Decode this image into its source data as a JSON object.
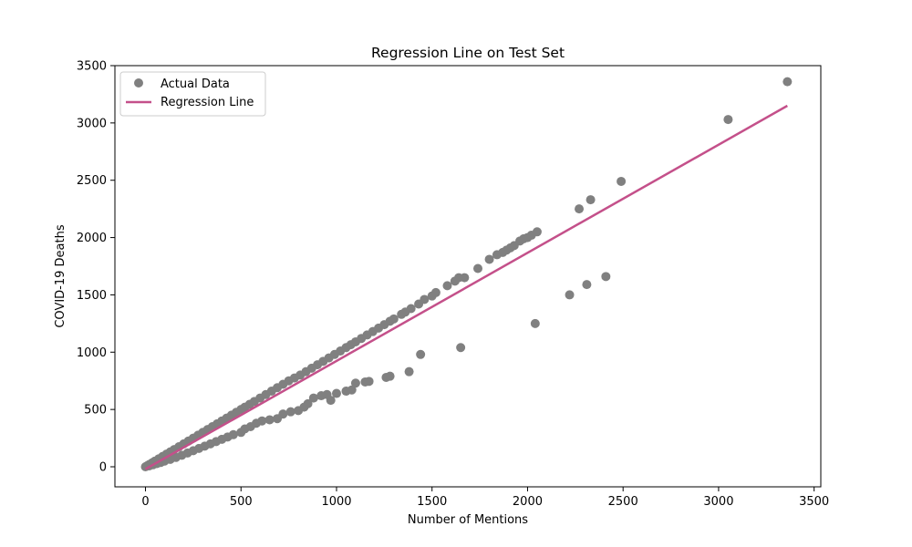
{
  "chart_data": {
    "type": "scatter",
    "title": "Regression Line on Test Set",
    "xlabel": "Number of Mentions",
    "ylabel": "COVID-19 Deaths",
    "xlim": [
      -160,
      3535
    ],
    "ylim": [
      -175,
      3500
    ],
    "xticks": [
      0,
      500,
      1000,
      1500,
      2000,
      2500,
      3000,
      3500
    ],
    "yticks": [
      0,
      500,
      1000,
      1500,
      2000,
      2500,
      3000,
      3500
    ],
    "grid": false,
    "legend_position": "top-left",
    "colors": {
      "points": "#808080",
      "line": "#c4508a"
    },
    "series": [
      {
        "name": "Actual Data",
        "kind": "scatter",
        "upper_band": [
          [
            0,
            0
          ],
          [
            10,
            10
          ],
          [
            20,
            20
          ],
          [
            35,
            35
          ],
          [
            50,
            50
          ],
          [
            70,
            70
          ],
          [
            90,
            90
          ],
          [
            110,
            110
          ],
          [
            130,
            130
          ],
          [
            150,
            150
          ],
          [
            175,
            175
          ],
          [
            200,
            200
          ],
          [
            225,
            225
          ],
          [
            250,
            250
          ],
          [
            275,
            275
          ],
          [
            300,
            300
          ],
          [
            325,
            325
          ],
          [
            350,
            350
          ],
          [
            375,
            375
          ],
          [
            400,
            400
          ],
          [
            425,
            425
          ],
          [
            450,
            450
          ],
          [
            475,
            475
          ],
          [
            500,
            500
          ],
          [
            520,
            520
          ],
          [
            545,
            545
          ],
          [
            570,
            570
          ],
          [
            600,
            600
          ],
          [
            630,
            630
          ],
          [
            660,
            660
          ],
          [
            690,
            690
          ],
          [
            720,
            720
          ],
          [
            750,
            750
          ],
          [
            780,
            775
          ],
          [
            810,
            800
          ],
          [
            840,
            830
          ],
          [
            870,
            860
          ],
          [
            900,
            890
          ],
          [
            930,
            920
          ],
          [
            960,
            950
          ],
          [
            990,
            980
          ],
          [
            1020,
            1010
          ],
          [
            1050,
            1040
          ],
          [
            1075,
            1065
          ],
          [
            1100,
            1090
          ],
          [
            1130,
            1120
          ],
          [
            1160,
            1150
          ],
          [
            1190,
            1180
          ],
          [
            1220,
            1210
          ],
          [
            1250,
            1240
          ],
          [
            1280,
            1270
          ],
          [
            1300,
            1290
          ],
          [
            1340,
            1330
          ],
          [
            1360,
            1350
          ],
          [
            1390,
            1380
          ],
          [
            1430,
            1420
          ],
          [
            1460,
            1460
          ],
          [
            1500,
            1490
          ],
          [
            1520,
            1520
          ],
          [
            1580,
            1580
          ],
          [
            1620,
            1620
          ],
          [
            1640,
            1650
          ],
          [
            1670,
            1650
          ],
          [
            1740,
            1730
          ],
          [
            1800,
            1810
          ],
          [
            1840,
            1850
          ],
          [
            1870,
            1870
          ],
          [
            1890,
            1890
          ],
          [
            1910,
            1910
          ],
          [
            1930,
            1930
          ],
          [
            1960,
            1970
          ],
          [
            1980,
            1990
          ],
          [
            2000,
            2000
          ],
          [
            2020,
            2020
          ],
          [
            2050,
            2050
          ],
          [
            2270,
            2250
          ],
          [
            2330,
            2330
          ],
          [
            2490,
            2490
          ],
          [
            3050,
            3030
          ],
          [
            3360,
            3360
          ]
        ],
        "lower_band": [
          [
            20,
            8
          ],
          [
            40,
            18
          ],
          [
            60,
            28
          ],
          [
            80,
            38
          ],
          [
            100,
            50
          ],
          [
            130,
            65
          ],
          [
            160,
            82
          ],
          [
            190,
            100
          ],
          [
            220,
            120
          ],
          [
            250,
            140
          ],
          [
            280,
            160
          ],
          [
            310,
            180
          ],
          [
            340,
            200
          ],
          [
            370,
            220
          ],
          [
            400,
            240
          ],
          [
            430,
            260
          ],
          [
            460,
            280
          ],
          [
            500,
            300
          ],
          [
            520,
            330
          ],
          [
            550,
            350
          ],
          [
            580,
            380
          ],
          [
            610,
            400
          ],
          [
            650,
            410
          ],
          [
            690,
            420
          ],
          [
            720,
            460
          ],
          [
            760,
            480
          ],
          [
            800,
            490
          ],
          [
            830,
            520
          ],
          [
            850,
            550
          ],
          [
            880,
            600
          ],
          [
            920,
            620
          ],
          [
            950,
            630
          ],
          [
            970,
            580
          ],
          [
            1000,
            640
          ],
          [
            1050,
            660
          ],
          [
            1080,
            670
          ],
          [
            1100,
            730
          ],
          [
            1150,
            740
          ],
          [
            1170,
            745
          ],
          [
            1260,
            780
          ],
          [
            1280,
            790
          ],
          [
            1380,
            830
          ],
          [
            1440,
            980
          ],
          [
            1650,
            1040
          ],
          [
            2040,
            1250
          ],
          [
            2220,
            1500
          ],
          [
            2310,
            1590
          ],
          [
            2410,
            1660
          ]
        ]
      },
      {
        "name": "Regression Line",
        "kind": "line",
        "points": [
          [
            0,
            -20
          ],
          [
            3360,
            3150
          ]
        ]
      }
    ]
  }
}
